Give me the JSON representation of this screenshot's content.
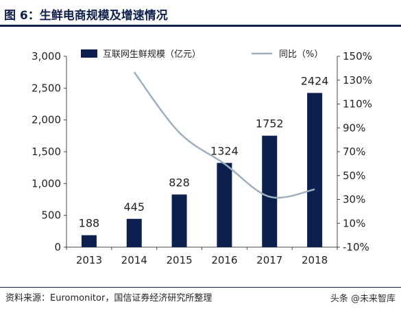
{
  "title": "图 6：生鲜电商规模及增速情况",
  "source": "资料来源：Euromonitor，国信证券经济研究所整理",
  "watermark": "头条 @未来智库",
  "colors": {
    "bar": "#0d1f4f",
    "line": "#9eafc0",
    "title": "#0f1f4d"
  },
  "chart_data": {
    "type": "bar",
    "categories": [
      "2013",
      "2014",
      "2015",
      "2016",
      "2017",
      "2018"
    ],
    "series": [
      {
        "name": "互联网生鲜规模（亿元）",
        "type": "bar",
        "axis": "left",
        "values": [
          188,
          445,
          828,
          1324,
          1752,
          2424
        ]
      },
      {
        "name": "同比（%）",
        "type": "line",
        "axis": "right",
        "values": [
          null,
          136.7,
          86.1,
          59.9,
          32.3,
          38.4
        ]
      }
    ],
    "y_left": {
      "range": [
        0,
        3000
      ],
      "ticks": [
        0,
        500,
        1000,
        1500,
        2000,
        2500,
        3000
      ],
      "tick_labels": [
        "0",
        "500",
        "1,000",
        "1,500",
        "2,000",
        "2,500",
        "3,000"
      ]
    },
    "y_right": {
      "range": [
        -10,
        150
      ],
      "ticks": [
        -10,
        10,
        30,
        50,
        70,
        90,
        110,
        130,
        150
      ],
      "tick_labels": [
        "-10%",
        "10%",
        "30%",
        "50%",
        "70%",
        "90%",
        "110%",
        "130%",
        "150%"
      ]
    },
    "data_labels": [
      "188",
      "445",
      "828",
      "1324",
      "1752",
      "2424"
    ],
    "legend": "top",
    "grid": false
  }
}
